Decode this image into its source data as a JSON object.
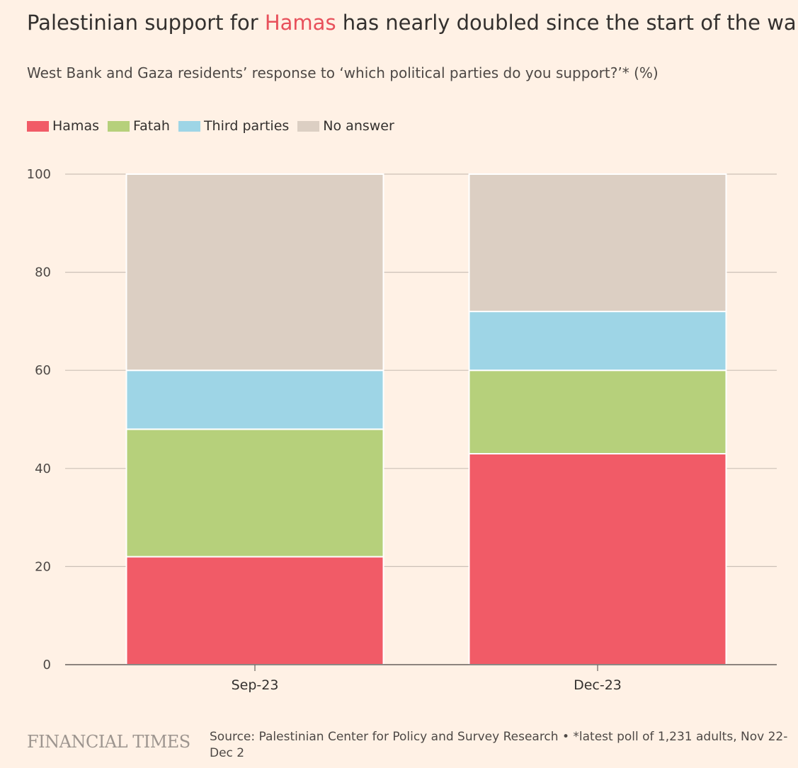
{
  "title": {
    "before": "Palestinian support for ",
    "highlight": "Hamas",
    "after": " has nearly doubled since the start of the war"
  },
  "subtitle": "West Bank and Gaza residents’ response to ‘which political parties do you support?’* (%)",
  "footer": {
    "brand": "FINANCIAL TIMES",
    "source": "Source: Palestinian Center for Policy and Survey Research • *latest poll of 1,231 adults, Nov 22-Dec 2"
  },
  "chart_data": {
    "type": "bar",
    "stacked": true,
    "categories": [
      "Sep-23",
      "Dec-23"
    ],
    "series": [
      {
        "name": "Hamas",
        "color": "#f15b67",
        "values": [
          22,
          43
        ]
      },
      {
        "name": "Fatah",
        "color": "#b6d07b",
        "values": [
          26,
          17
        ]
      },
      {
        "name": "Third parties",
        "color": "#9ed5e6",
        "values": [
          12,
          12
        ]
      },
      {
        "name": "No answer",
        "color": "#dccfc3",
        "values": [
          40,
          28
        ]
      }
    ],
    "ylim": [
      0,
      100
    ],
    "yticks": [
      0,
      20,
      40,
      60,
      80,
      100
    ],
    "grid": true,
    "legend": "top-left"
  }
}
